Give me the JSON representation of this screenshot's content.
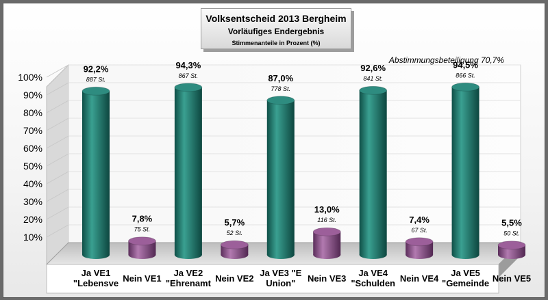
{
  "chart_data": {
    "type": "bar",
    "title": "Volksentscheid 2013 Bergheim",
    "subtitle": "Vorläufiges Endergebnis",
    "note": "Stimmenanteile in Prozent (%)",
    "annotation": "Abstimmungsbeteiligung 70,7%",
    "ylim": [
      0,
      100
    ],
    "ytick_values": [
      10,
      20,
      30,
      40,
      50,
      60,
      70,
      80,
      90,
      100
    ],
    "ytick_labels": [
      "10%",
      "20%",
      "30%",
      "40%",
      "50%",
      "60%",
      "70%",
      "80%",
      "90%",
      "100%"
    ],
    "grid": true,
    "categories": [
      [
        "Ja VE1",
        "\"Lebensve"
      ],
      [
        "Nein VE1"
      ],
      [
        "Ja VE2",
        "\"Ehrenamt"
      ],
      [
        "Nein VE2"
      ],
      [
        "Ja VE3 \"E",
        "Union\""
      ],
      [
        "Nein VE3"
      ],
      [
        "Ja VE4",
        "\"Schulden"
      ],
      [
        "Nein VE4"
      ],
      [
        "Ja VE5",
        "\"Gemeinde"
      ],
      [
        "Nein VE5"
      ]
    ],
    "values": [
      92.2,
      7.8,
      94.3,
      5.7,
      87.0,
      13.0,
      92.6,
      7.4,
      94.5,
      5.5
    ],
    "value_labels": [
      "92,2%",
      "7,8%",
      "94,3%",
      "5,7%",
      "87,0%",
      "13,0%",
      "92,6%",
      "7,4%",
      "94,5%",
      "5,5%"
    ],
    "count_labels": [
      "887 St.",
      "75 St.",
      "867 St.",
      "52 St.",
      "778 St.",
      "116 St.",
      "841 St.",
      "67 St.",
      "866 St.",
      "50 St."
    ],
    "colors": [
      "#1d7a6e",
      "#8a4a88",
      "#1d7a6e",
      "#8a4a88",
      "#1d7a6e",
      "#8a4a88",
      "#1d7a6e",
      "#8a4a88",
      "#1d7a6e",
      "#8a4a88"
    ]
  }
}
